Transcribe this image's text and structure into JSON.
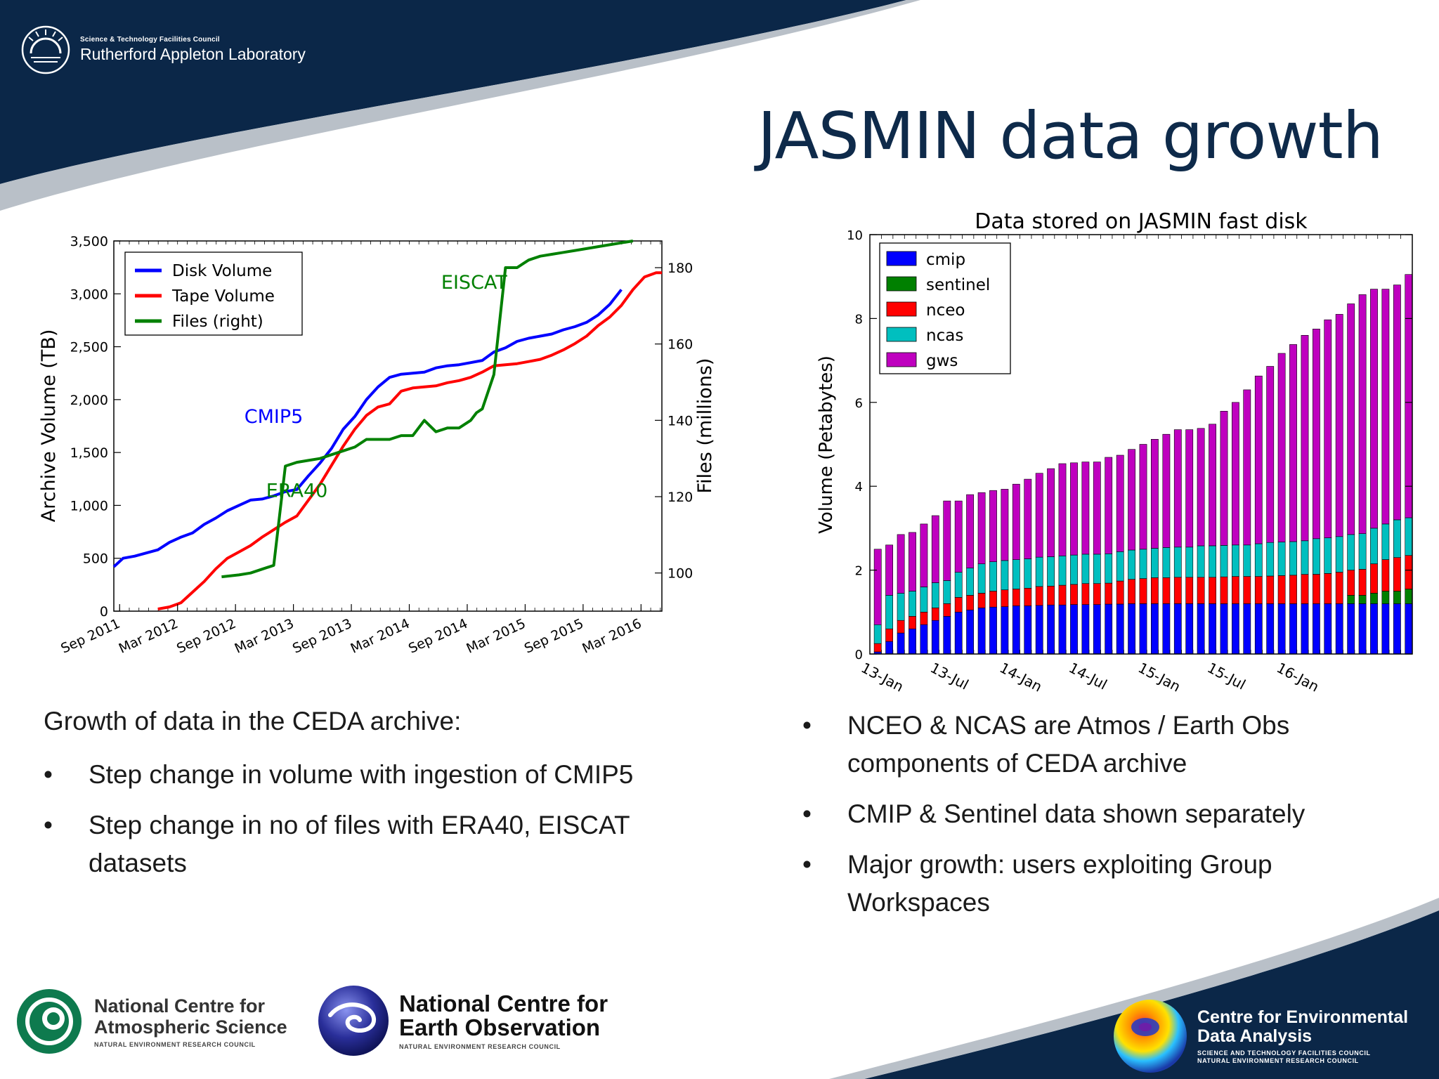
{
  "header": {
    "org_small": "Science & Technology Facilities Council",
    "org_name": "Rutherford Appleton Laboratory",
    "title": "JASMIN data growth"
  },
  "left_text": {
    "heading": "Growth of data in the CEDA archive:",
    "bullets": [
      "Step change in volume with ingestion of CMIP5",
      "Step change in no of files with ERA40, EISCAT datasets"
    ]
  },
  "right_text": {
    "bullets": [
      "NCEO & NCAS are Atmos / Earth Obs components of CEDA archive",
      "CMIP & Sentinel data shown separately",
      "Major growth: users exploiting Group Workspaces"
    ]
  },
  "footer": {
    "ncas": {
      "line1": "National Centre for",
      "line2": "Atmospheric Science",
      "small": "NATURAL ENVIRONMENT RESEARCH COUNCIL"
    },
    "nceo": {
      "line1": "National Centre for",
      "line2": "Earth Observation",
      "small": "NATURAL ENVIRONMENT RESEARCH COUNCIL"
    },
    "ceda": {
      "line1": "Centre for Environmental",
      "line2": "Data Analysis",
      "small1": "SCIENCE AND TECHNOLOGY FACILITIES COUNCIL",
      "small2": "NATURAL ENVIRONMENT RESEARCH COUNCIL"
    }
  },
  "colors": {
    "navy": "#0b2748",
    "blue": "#0000ff",
    "red": "#ff0000",
    "green": "#008000",
    "cyan": "#00bfbf",
    "magenta": "#bf00bf"
  },
  "chart_data": [
    {
      "type": "line",
      "title": "",
      "ylabel": "Archive Volume (TB)",
      "y2label": "Files (millions)",
      "ylim": [
        0,
        3500
      ],
      "y2lim": [
        90,
        187
      ],
      "xlim": [
        2011.62,
        2016.35
      ],
      "yticks": [
        "0",
        "500",
        "1,000",
        "1,500",
        "2,000",
        "2,500",
        "3,000",
        "3,500"
      ],
      "y2ticks": [
        "100",
        "120",
        "140",
        "160",
        "180"
      ],
      "xtick_labels": [
        "Sep 2011",
        "Mar 2012",
        "Sep 2012",
        "Mar 2013",
        "Sep 2013",
        "Mar 2014",
        "Sep 2014",
        "Mar 2015",
        "Sep 2015",
        "Mar 2016"
      ],
      "legend_position": "top-left",
      "annotations": [
        {
          "text": "CMIP5",
          "x": 2013.0,
          "y": 1780,
          "color": "#0000ff"
        },
        {
          "text": "ERA40",
          "x": 2013.2,
          "y": 1080,
          "color": "#008000"
        },
        {
          "text": "EISCAT",
          "x": 2014.73,
          "y": 3050,
          "color": "#008000"
        }
      ],
      "series": [
        {
          "name": "Disk Volume",
          "color": "#0000ff",
          "axis": "left",
          "x": [
            2011.62,
            2011.7,
            2011.8,
            2011.9,
            2012.0,
            2012.1,
            2012.2,
            2012.3,
            2012.4,
            2012.5,
            2012.6,
            2012.7,
            2012.8,
            2012.9,
            2013.0,
            2013.1,
            2013.2,
            2013.3,
            2013.4,
            2013.5,
            2013.6,
            2013.7,
            2013.8,
            2013.9,
            2014.0,
            2014.1,
            2014.2,
            2014.3,
            2014.4,
            2014.5,
            2014.6,
            2014.7,
            2014.8,
            2014.9,
            2015.0,
            2015.1,
            2015.2,
            2015.3,
            2015.4,
            2015.5,
            2015.6,
            2015.7,
            2015.8,
            2015.9,
            2016.0
          ],
          "y": [
            420,
            500,
            520,
            550,
            580,
            650,
            700,
            740,
            820,
            880,
            950,
            1000,
            1050,
            1060,
            1090,
            1130,
            1150,
            1280,
            1400,
            1540,
            1720,
            1840,
            2000,
            2120,
            2210,
            2240,
            2250,
            2260,
            2300,
            2320,
            2330,
            2350,
            2370,
            2450,
            2490,
            2550,
            2580,
            2600,
            2620,
            2660,
            2690,
            2730,
            2800,
            2900,
            3040
          ]
        },
        {
          "name": "Tape Volume",
          "color": "#ff0000",
          "axis": "left",
          "x": [
            2012.0,
            2012.1,
            2012.2,
            2012.3,
            2012.4,
            2012.5,
            2012.6,
            2012.7,
            2012.8,
            2012.9,
            2013.0,
            2013.1,
            2013.2,
            2013.3,
            2013.4,
            2013.5,
            2013.6,
            2013.7,
            2013.8,
            2013.9,
            2014.0,
            2014.1,
            2014.2,
            2014.3,
            2014.4,
            2014.5,
            2014.6,
            2014.7,
            2014.8,
            2014.9,
            2015.0,
            2015.1,
            2015.2,
            2015.3,
            2015.4,
            2015.5,
            2015.6,
            2015.7,
            2015.8,
            2015.9,
            2016.0,
            2016.1,
            2016.2,
            2016.3,
            2016.35
          ],
          "y": [
            20,
            40,
            80,
            180,
            280,
            400,
            500,
            560,
            620,
            700,
            770,
            840,
            900,
            1050,
            1200,
            1380,
            1560,
            1720,
            1850,
            1930,
            1960,
            2080,
            2110,
            2120,
            2130,
            2160,
            2180,
            2210,
            2260,
            2320,
            2330,
            2340,
            2360,
            2380,
            2420,
            2470,
            2530,
            2600,
            2700,
            2780,
            2890,
            3040,
            3160,
            3200,
            3200
          ]
        },
        {
          "name": "Files (right)",
          "color": "#008000",
          "axis": "right",
          "x": [
            2012.55,
            2012.7,
            2012.8,
            2012.9,
            2013.0,
            2013.1,
            2013.2,
            2013.3,
            2013.4,
            2013.5,
            2013.6,
            2013.7,
            2013.8,
            2013.9,
            2014.0,
            2014.1,
            2014.2,
            2014.3,
            2014.4,
            2014.5,
            2014.6,
            2014.7,
            2014.75,
            2014.8,
            2014.9,
            2015.0,
            2015.1,
            2015.15,
            2015.2,
            2015.3,
            2015.4,
            2015.5,
            2015.6,
            2015.7,
            2015.8,
            2015.9,
            2016.0,
            2016.1
          ],
          "y": [
            99,
            99.5,
            100,
            101,
            102,
            128,
            129,
            129.5,
            130,
            131,
            132,
            133,
            135,
            135,
            135,
            136,
            136,
            140,
            137,
            138,
            138,
            140,
            142,
            143,
            152,
            180,
            180,
            181,
            182,
            183,
            183.5,
            184,
            184.5,
            185,
            185.5,
            186,
            186.5,
            187
          ]
        }
      ]
    },
    {
      "type": "bar",
      "stacked": true,
      "title": "Data stored on JASMIN fast disk",
      "ylabel": "Volume (Petabytes)",
      "ylim": [
        0,
        10
      ],
      "yticks": [
        "0",
        "2",
        "4",
        "6",
        "8",
        "10"
      ],
      "xtick_labels": [
        "13-Jan",
        "13-Jul",
        "14-Jan",
        "14-Jul",
        "15-Jan",
        "15-Jul",
        "16-Jan"
      ],
      "legend_position": "top-left",
      "series": [
        {
          "name": "cmip",
          "color": "#0000ff",
          "values": [
            0.05,
            0.3,
            0.5,
            0.6,
            0.7,
            0.8,
            0.9,
            1.0,
            1.05,
            1.1,
            1.12,
            1.13,
            1.15,
            1.15,
            1.16,
            1.17,
            1.17,
            1.18,
            1.18,
            1.18,
            1.19,
            1.19,
            1.2,
            1.2,
            1.2,
            1.2,
            1.2,
            1.2,
            1.2,
            1.2,
            1.2,
            1.2,
            1.2,
            1.2,
            1.2,
            1.2,
            1.2,
            1.2,
            1.2,
            1.2,
            1.2,
            1.2,
            1.2,
            1.2,
            1.2,
            1.2,
            1.2
          ]
        },
        {
          "name": "sentinel",
          "color": "#008000",
          "values": [
            0,
            0,
            0,
            0,
            0,
            0,
            0,
            0,
            0,
            0,
            0,
            0,
            0,
            0,
            0,
            0,
            0,
            0,
            0,
            0,
            0,
            0,
            0,
            0,
            0,
            0,
            0,
            0,
            0,
            0,
            0,
            0,
            0,
            0,
            0,
            0,
            0,
            0,
            0,
            0,
            0,
            0.2,
            0.2,
            0.25,
            0.3,
            0.3,
            0.35
          ]
        },
        {
          "name": "nceo",
          "color": "#ff0000",
          "values": [
            0.2,
            0.3,
            0.3,
            0.3,
            0.3,
            0.3,
            0.3,
            0.35,
            0.35,
            0.35,
            0.38,
            0.4,
            0.4,
            0.42,
            0.45,
            0.45,
            0.47,
            0.48,
            0.5,
            0.5,
            0.5,
            0.55,
            0.58,
            0.6,
            0.62,
            0.62,
            0.63,
            0.63,
            0.63,
            0.63,
            0.64,
            0.65,
            0.65,
            0.65,
            0.66,
            0.67,
            0.68,
            0.7,
            0.7,
            0.72,
            0.75,
            0.6,
            0.62,
            0.7,
            0.75,
            0.8,
            0.8
          ]
        },
        {
          "name": "ncas",
          "color": "#00bfbf",
          "values": [
            0.45,
            0.8,
            0.65,
            0.6,
            0.6,
            0.6,
            0.55,
            0.6,
            0.65,
            0.7,
            0.7,
            0.7,
            0.7,
            0.7,
            0.7,
            0.7,
            0.7,
            0.7,
            0.7,
            0.7,
            0.7,
            0.7,
            0.7,
            0.7,
            0.7,
            0.72,
            0.72,
            0.72,
            0.75,
            0.75,
            0.75,
            0.75,
            0.75,
            0.78,
            0.8,
            0.8,
            0.8,
            0.8,
            0.85,
            0.85,
            0.85,
            0.85,
            0.85,
            0.85,
            0.85,
            0.9,
            0.9
          ]
        },
        {
          "name": "gws",
          "color": "#bf00bf",
          "values": [
            1.8,
            1.2,
            1.4,
            1.4,
            1.5,
            1.6,
            1.9,
            1.7,
            1.75,
            1.7,
            1.7,
            1.7,
            1.8,
            1.9,
            2.0,
            2.1,
            2.2,
            2.2,
            2.2,
            2.2,
            2.3,
            2.3,
            2.4,
            2.5,
            2.6,
            2.7,
            2.8,
            2.8,
            2.8,
            2.9,
            3.2,
            3.4,
            3.7,
            4.0,
            4.2,
            4.5,
            4.7,
            4.9,
            5.0,
            5.2,
            5.3,
            5.5,
            5.7,
            5.7,
            5.6,
            5.6,
            5.8
          ]
        }
      ]
    }
  ]
}
